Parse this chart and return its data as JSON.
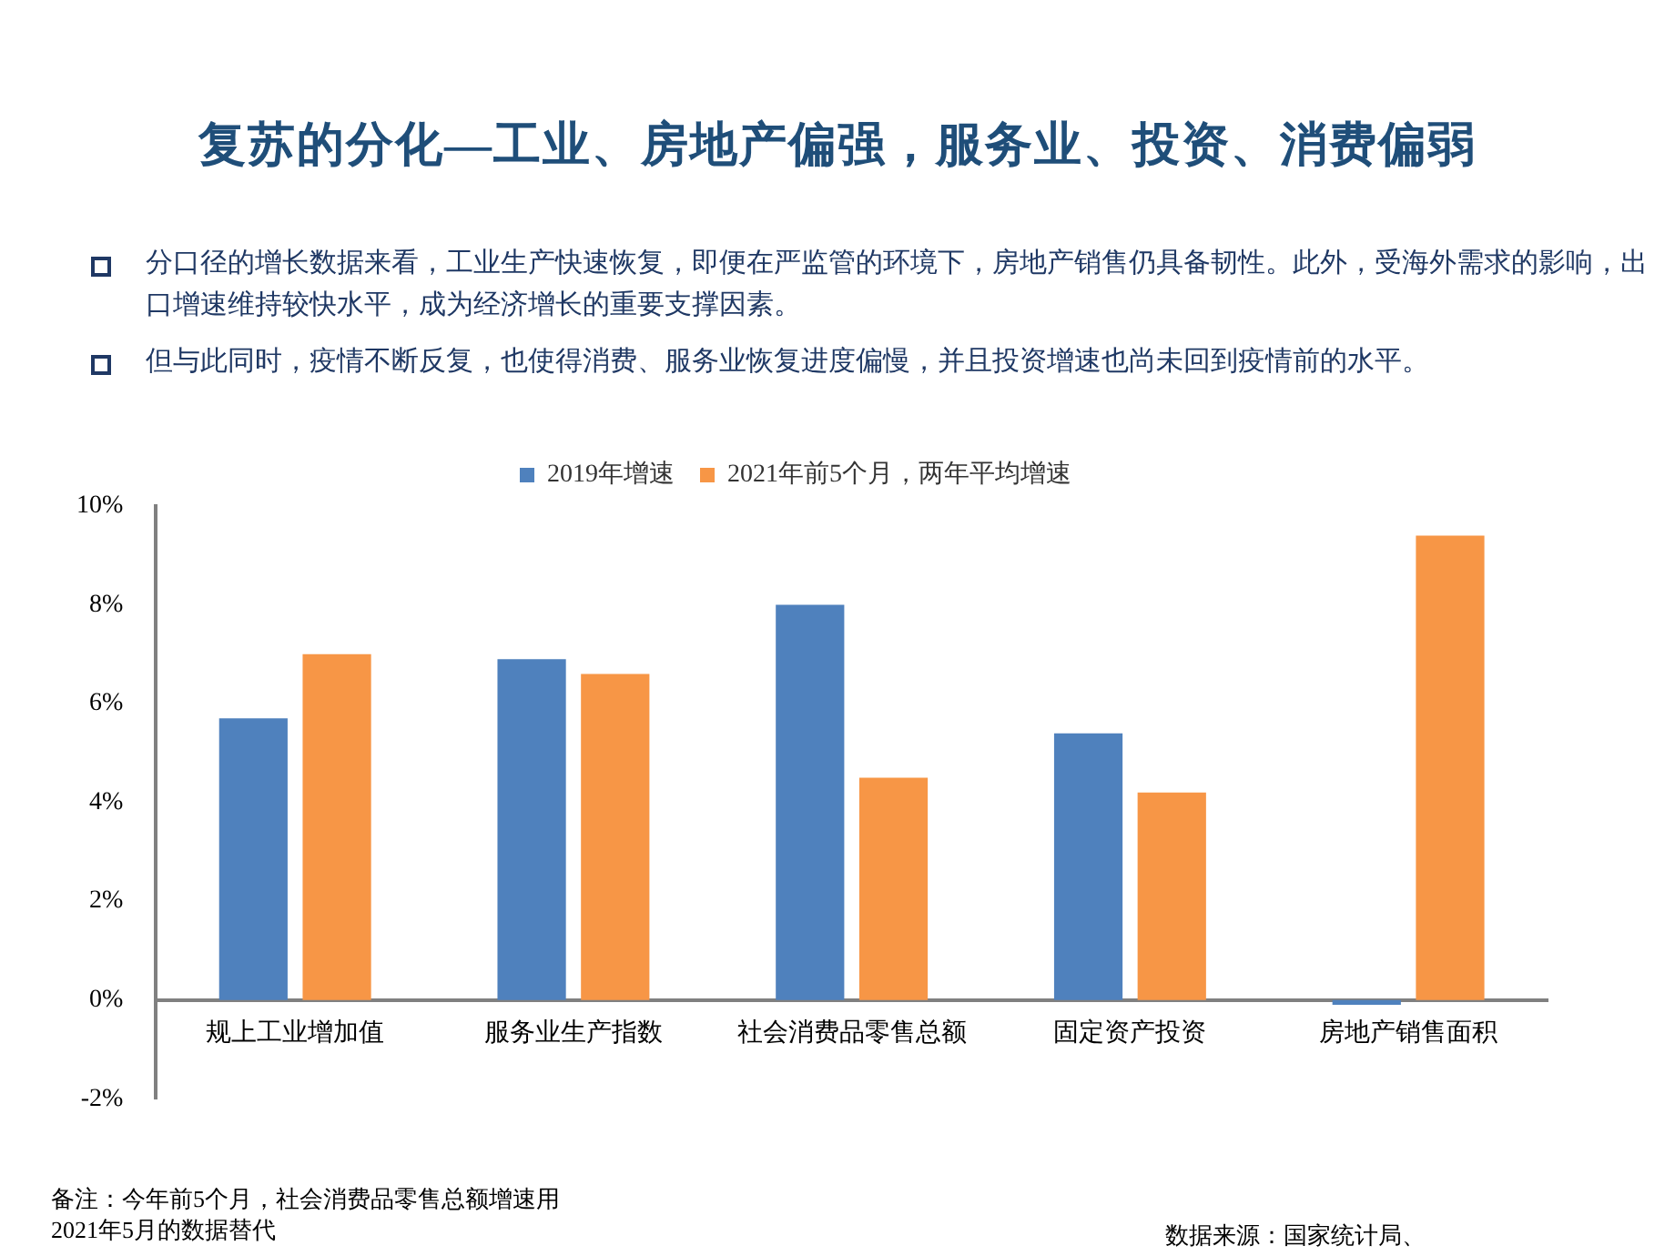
{
  "chart_data": {
    "type": "bar",
    "title": "复苏的分化—工业、房地产偏强，服务业、投资、消费偏弱",
    "categories": [
      "规上工业增加值",
      "服务业生产指数",
      "社会消费品零售总额",
      "固定资产投资",
      "房地产销售面积"
    ],
    "series": [
      {
        "name": "2019年增速",
        "color": "#4f81bd",
        "values": [
          5.7,
          6.9,
          8.0,
          5.4,
          -0.1
        ]
      },
      {
        "name": "2021年前5个月，两年平均增速",
        "color": "#f79646",
        "values": [
          7.0,
          6.6,
          4.5,
          4.2,
          9.4
        ]
      }
    ],
    "ylim": [
      -2,
      10
    ],
    "yticks": [
      {
        "value": -2,
        "label": "-2%"
      },
      {
        "value": 0,
        "label": "0%"
      },
      {
        "value": 2,
        "label": "2%"
      },
      {
        "value": 4,
        "label": "4%"
      },
      {
        "value": 6,
        "label": "6%"
      },
      {
        "value": 8,
        "label": "8%"
      },
      {
        "value": 10,
        "label": "10%"
      }
    ],
    "grid": false,
    "legend": "top",
    "annotations": [
      "分口径的增长数据来看，工业生产快速恢复，即便在严监管的环境下，房地产销售仍具备韧性。此外，受海外需求的影响，出口增速维持较快水平，成为经济增长的重要支撑因素。",
      "但与此同时，疫情不断反复，也使得消费、服务业恢复进度偏慢，并且投资增速也尚未回到疫情前的水平。",
      "备注：今年前5个月，社会消费品零售总额增速用2021年5月的数据替代",
      "数据来源：国家统计局、"
    ]
  }
}
